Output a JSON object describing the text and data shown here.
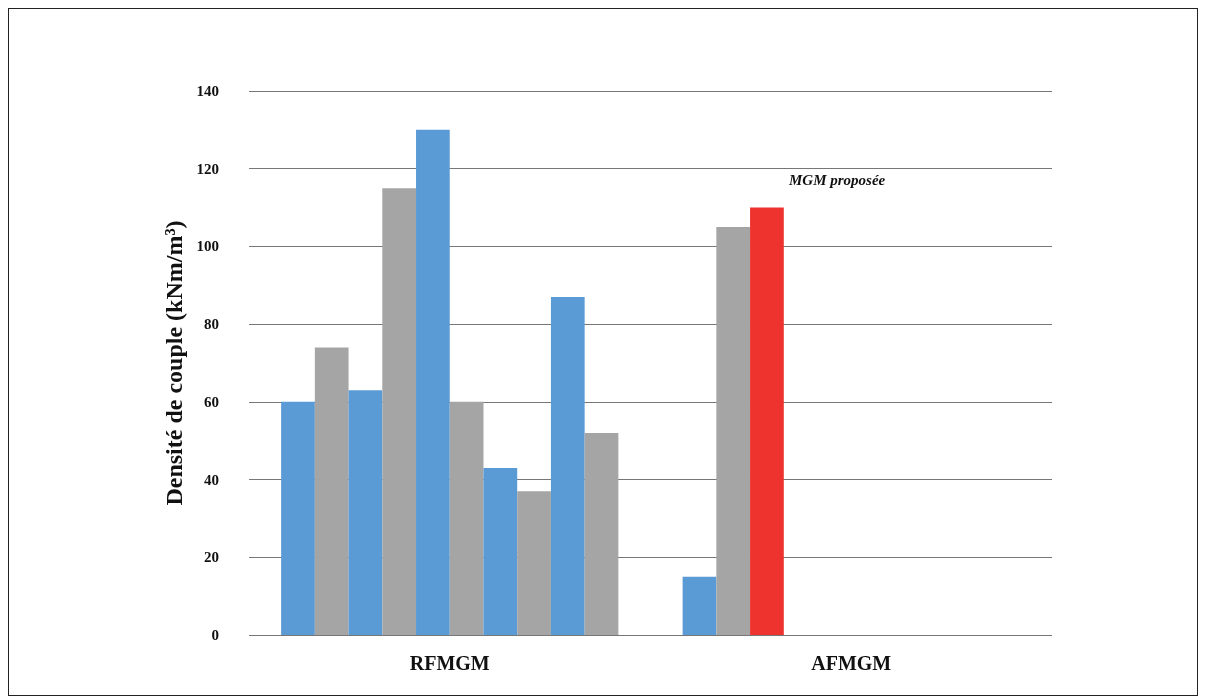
{
  "chart_data": {
    "type": "bar",
    "ylabel": "Densité de couple (kNm/m³)",
    "categories": [
      "RFMGM",
      "AFMGM"
    ],
    "series": [
      {
        "color": "#5b9bd5",
        "values": [
          60,
          15
        ]
      },
      {
        "color": "#a5a5a5",
        "values": [
          74,
          105
        ]
      },
      {
        "color": "#5b9bd5",
        "values": [
          63,
          110
        ],
        "colors": [
          "#5b9bd5",
          "#ee332e"
        ]
      },
      {
        "color": "#a5a5a5",
        "values": [
          115,
          null
        ]
      },
      {
        "color": "#5b9bd5",
        "values": [
          130,
          null
        ]
      },
      {
        "color": "#a5a5a5",
        "values": [
          60,
          null
        ]
      },
      {
        "color": "#5b9bd5",
        "values": [
          43,
          null
        ]
      },
      {
        "color": "#a5a5a5",
        "values": [
          37,
          null
        ]
      },
      {
        "color": "#5b9bd5",
        "values": [
          87,
          null
        ]
      },
      {
        "color": "#a5a5a5",
        "values": [
          52,
          null
        ]
      }
    ],
    "ylim": [
      0,
      140
    ],
    "yticks": [
      0,
      20,
      40,
      60,
      80,
      100,
      120,
      140
    ],
    "grid": "y",
    "annotations": [
      "MGM proposée"
    ]
  }
}
